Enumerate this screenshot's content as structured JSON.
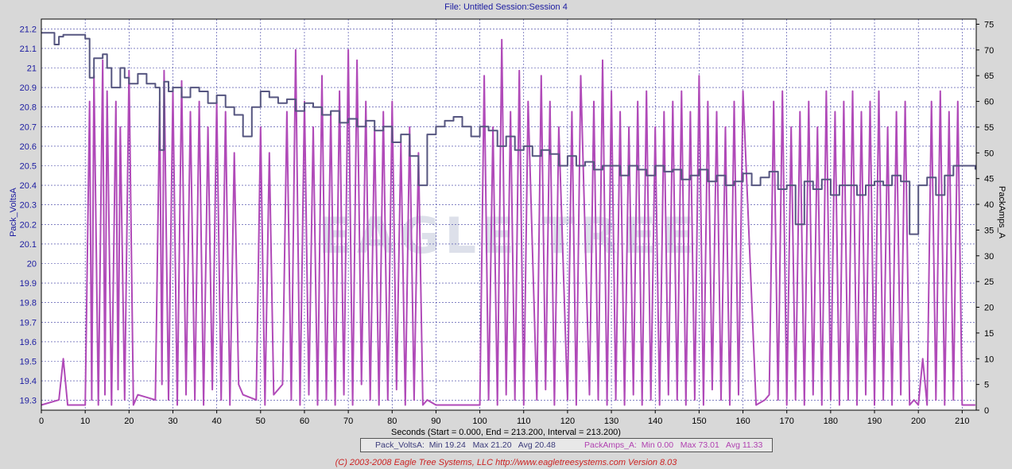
{
  "header": {
    "title": "File: Untitled   Session:Session 4"
  },
  "chart_data": {
    "type": "line",
    "xlabel": "Seconds (Start = 0.000,  End = 213.200,  Interval =  213.200)",
    "xlim": [
      0,
      213.2
    ],
    "x_ticks": [
      0,
      10,
      20,
      30,
      40,
      50,
      60,
      70,
      80,
      90,
      100,
      110,
      120,
      130,
      140,
      150,
      160,
      170,
      180,
      190,
      200,
      210
    ],
    "y_left": {
      "label": "Pack_VoltsA",
      "ylim": [
        19.25,
        21.25
      ],
      "ticks": [
        "19.3",
        "19.4",
        "19.5",
        "19.6",
        "19.7",
        "19.8",
        "19.9",
        "20",
        "20.1",
        "20.2",
        "20.3",
        "20.4",
        "20.5",
        "20.6",
        "20.7",
        "20.8",
        "20.9",
        "21",
        "21.1",
        "21.2"
      ]
    },
    "y_right": {
      "label": "PackAmps_A",
      "ylim": [
        0,
        76
      ],
      "ticks": [
        "0",
        "5",
        "10",
        "15",
        "20",
        "25",
        "30",
        "35",
        "40",
        "45",
        "50",
        "55",
        "60",
        "65",
        "70",
        "75"
      ]
    },
    "grid": true,
    "series": [
      {
        "name": "Pack_VoltsA",
        "axis": "left",
        "color": "#565680",
        "x": [
          0,
          2,
          3,
          4,
          5,
          6,
          10,
          11,
          12,
          14,
          15,
          16,
          18,
          19,
          20,
          22,
          24,
          26,
          27,
          28,
          29,
          30,
          32,
          34,
          36,
          38,
          40,
          42,
          44,
          46,
          48,
          50,
          52,
          54,
          56,
          58,
          60,
          62,
          64,
          66,
          68,
          70,
          72,
          74,
          76,
          78,
          80,
          82,
          84,
          86,
          88,
          90,
          92,
          94,
          96,
          98,
          100,
          102,
          104,
          106,
          108,
          110,
          112,
          114,
          116,
          118,
          120,
          122,
          124,
          126,
          128,
          130,
          132,
          134,
          136,
          138,
          140,
          142,
          144,
          146,
          148,
          150,
          152,
          154,
          156,
          158,
          160,
          162,
          164,
          166,
          168,
          170,
          172,
          174,
          176,
          178,
          180,
          182,
          184,
          186,
          188,
          190,
          192,
          194,
          196,
          198,
          200,
          202,
          204,
          206,
          208,
          210,
          213
        ],
        "y": [
          21.18,
          21.18,
          21.12,
          21.16,
          21.17,
          21.17,
          21.15,
          20.95,
          21.05,
          21.07,
          21.0,
          20.9,
          21.0,
          20.95,
          20.92,
          20.97,
          20.92,
          20.9,
          20.58,
          20.93,
          20.88,
          20.9,
          20.85,
          20.9,
          20.88,
          20.82,
          20.86,
          20.8,
          20.76,
          20.65,
          20.8,
          20.88,
          20.85,
          20.82,
          20.84,
          20.78,
          20.82,
          20.8,
          20.76,
          20.78,
          20.72,
          20.74,
          20.7,
          20.73,
          20.68,
          20.7,
          20.62,
          20.66,
          20.55,
          20.4,
          20.66,
          20.7,
          20.73,
          20.75,
          20.7,
          20.65,
          20.7,
          20.68,
          20.6,
          20.65,
          20.58,
          20.6,
          20.55,
          20.58,
          20.56,
          20.5,
          20.55,
          20.5,
          20.52,
          20.48,
          20.5,
          20.5,
          20.45,
          20.5,
          20.48,
          20.45,
          20.5,
          20.47,
          20.48,
          20.43,
          20.45,
          20.48,
          20.42,
          20.45,
          20.4,
          20.42,
          20.46,
          20.4,
          20.44,
          20.47,
          20.38,
          20.4,
          20.2,
          20.42,
          20.38,
          20.43,
          20.35,
          20.4,
          20.4,
          20.35,
          20.4,
          20.42,
          20.4,
          20.45,
          20.42,
          20.15,
          20.4,
          20.44,
          20.35,
          20.45,
          20.5,
          20.5,
          20.48
        ]
      },
      {
        "name": "PackAmps_A",
        "axis": "right",
        "color": "#b04ab8",
        "x": [
          0,
          4,
          5,
          6,
          10,
          11,
          11.5,
          12,
          13,
          14,
          14.5,
          15,
          16,
          17,
          17.5,
          18,
          19,
          20,
          21,
          22,
          26,
          27,
          27.5,
          28,
          29,
          30,
          31,
          32,
          33,
          34,
          35,
          36,
          37,
          38,
          39,
          40,
          41,
          42,
          43,
          44,
          45,
          46,
          49,
          50,
          51,
          52,
          53,
          55,
          56,
          57,
          58,
          59,
          60,
          61,
          62,
          63,
          64,
          65,
          66,
          67,
          68,
          69,
          70,
          71,
          72,
          73,
          74,
          75,
          76,
          77,
          78,
          79,
          80,
          81,
          82,
          83,
          84,
          85,
          86,
          87,
          88,
          90,
          95,
          100,
          101,
          102,
          103,
          104,
          105,
          106,
          107,
          108,
          109,
          110,
          111,
          113,
          114,
          115,
          116,
          117,
          118,
          120,
          121,
          122,
          123,
          125,
          126,
          127,
          128,
          129,
          130,
          131,
          132,
          133,
          134,
          135,
          136,
          137,
          138,
          139,
          140,
          141,
          142,
          143,
          144,
          145,
          146,
          147,
          148,
          149,
          150,
          151,
          152,
          153,
          154,
          155,
          156,
          157,
          158,
          159,
          160,
          163,
          165,
          166,
          167,
          168,
          169,
          170,
          171,
          172,
          173,
          174,
          175,
          176,
          177,
          178,
          179,
          180,
          181,
          182,
          183,
          184,
          185,
          186,
          187,
          188,
          189,
          190,
          191,
          192,
          193,
          194,
          195,
          196,
          197,
          198,
          199,
          200,
          201,
          202,
          203,
          204,
          205,
          206,
          207,
          208,
          209,
          210,
          213
        ],
        "y": [
          1,
          2,
          10,
          1,
          1,
          60,
          2,
          65,
          1,
          68,
          3,
          62,
          1,
          60,
          4,
          55,
          2,
          66,
          1,
          3,
          2,
          60,
          5,
          66,
          2,
          62,
          1,
          64,
          3,
          58,
          2,
          60,
          1,
          55,
          4,
          60,
          2,
          58,
          1,
          50,
          5,
          3,
          2,
          55,
          1,
          50,
          3,
          5,
          58,
          2,
          70,
          1,
          60,
          3,
          55,
          1,
          65,
          2,
          58,
          1,
          62,
          3,
          70,
          1,
          68,
          5,
          60,
          2,
          55,
          1,
          58,
          2,
          60,
          4,
          52,
          1,
          55,
          2,
          50,
          1,
          2,
          1,
          1,
          1,
          65,
          2,
          55,
          1,
          72,
          3,
          58,
          2,
          66,
          1,
          60,
          2,
          65,
          4,
          60,
          1,
          55,
          2,
          58,
          1,
          65,
          3,
          60,
          2,
          68,
          1,
          62,
          2,
          58,
          1,
          55,
          3,
          60,
          1,
          62,
          2,
          55,
          1,
          58,
          3,
          60,
          2,
          62,
          1,
          58,
          2,
          65,
          1,
          60,
          4,
          58,
          2,
          55,
          1,
          60,
          3,
          62,
          1,
          2,
          3,
          60,
          2,
          62,
          1,
          55,
          2,
          58,
          1,
          60,
          3,
          55,
          1,
          62,
          2,
          58,
          1,
          60,
          2,
          62,
          1,
          58,
          3,
          60,
          1,
          62,
          2,
          55,
          1,
          58,
          3,
          60,
          1,
          2,
          1,
          10,
          1,
          60,
          2,
          62,
          1,
          58,
          2,
          60,
          1,
          1
        ]
      }
    ]
  },
  "legend": {
    "volts": "Pack_VoltsA:  Min 19.24   Max 21.20   Avg 20.48",
    "amps": "PackAmps_A:  Min 0.00   Max 73.01   Avg 11.33"
  },
  "footer": "(C) 2003-2008 Eagle Tree Systems, LLC     http://www.eagletreesystems.com     Version 8.03",
  "watermark": "EAGLE TREE",
  "colors": {
    "background": "#d8d8d8",
    "plot_bg": "#ffffff",
    "grid": "#3a3aa0"
  }
}
